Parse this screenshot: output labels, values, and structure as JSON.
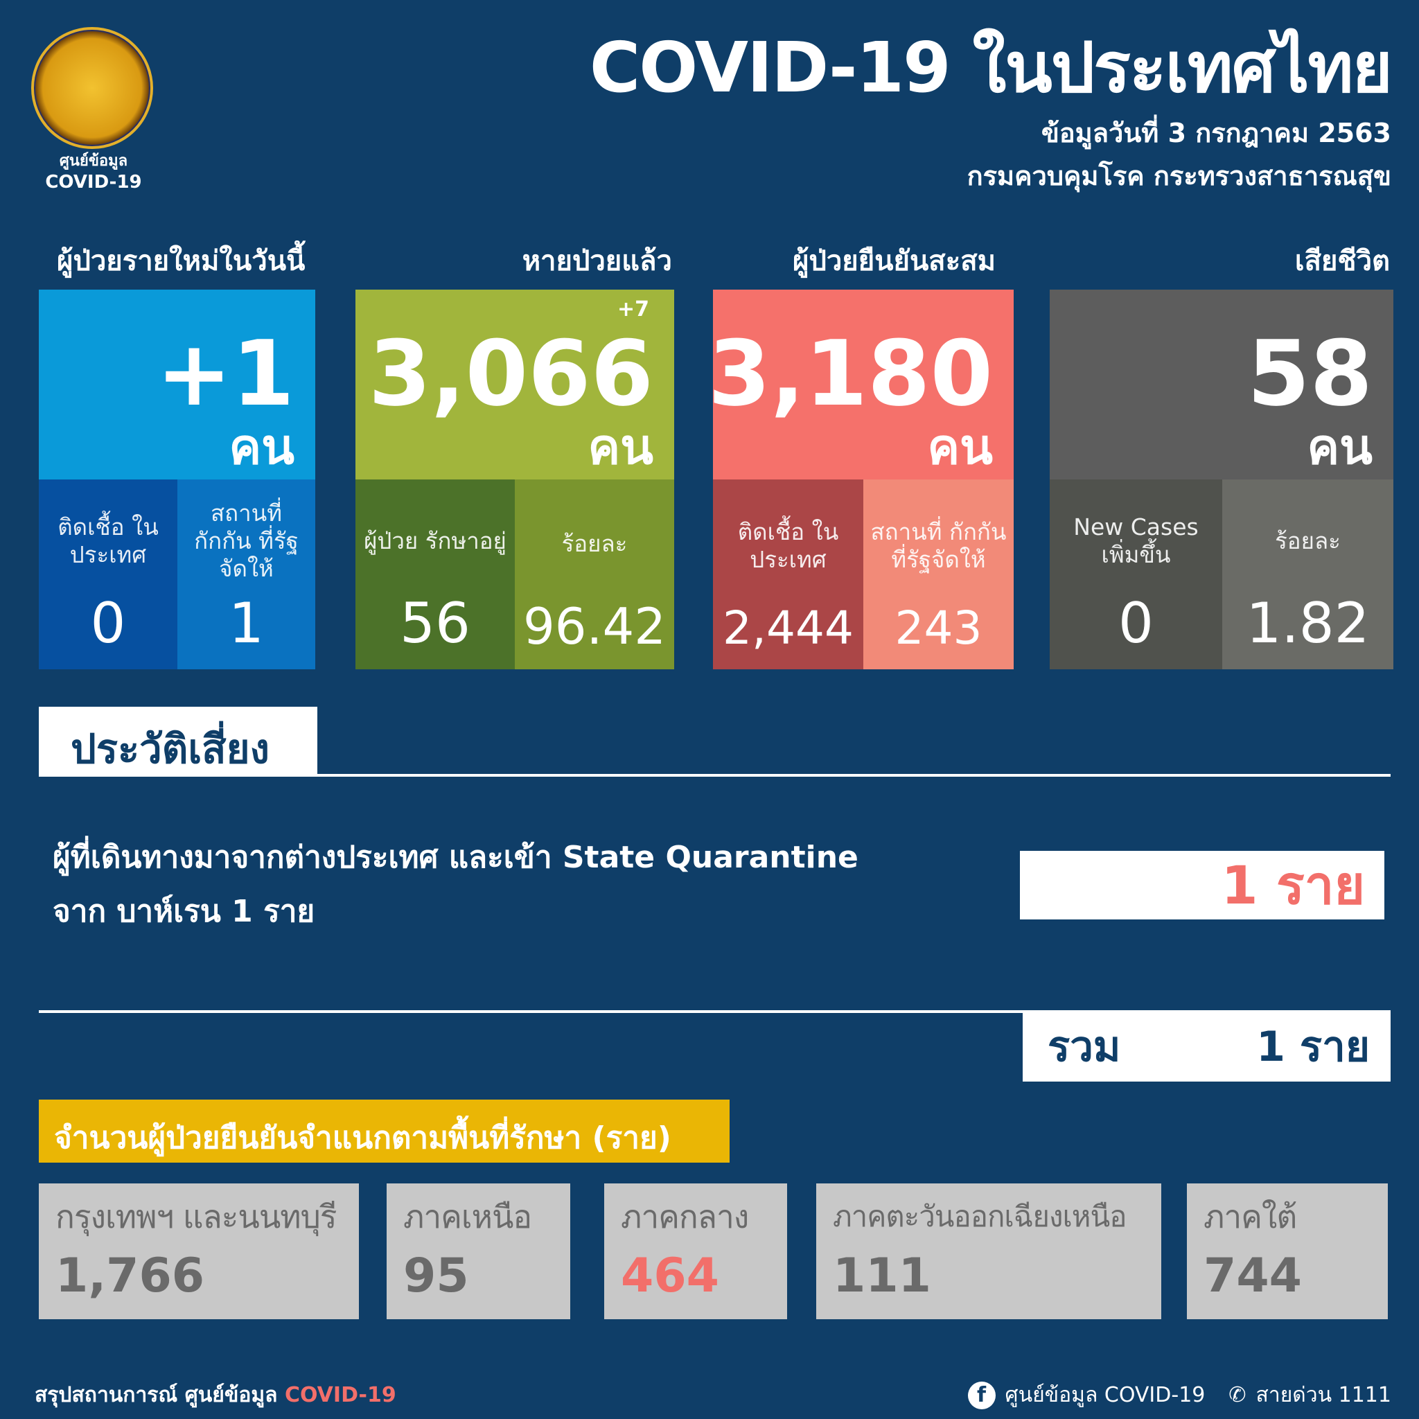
{
  "logo": {
    "line1": "ศูนย์ข้อมูล",
    "line2": "COVID-19"
  },
  "header": {
    "title": "COVID-19 ในประเทศไทย",
    "date": "ข้อมูลวันที่ 3 กรกฎาคม 2563",
    "org": "กรมควบคุมโรค กระทรวงสาธารณสุข"
  },
  "unit": "คน",
  "cards": [
    {
      "label": "ผู้ป่วยรายใหม่ในวันนี้",
      "value": "+1",
      "sub": [
        {
          "label": "ติดเชื้อ ในประเทศ",
          "value": "0"
        },
        {
          "label": "สถานที่ กักกัน ที่รัฐจัดให้",
          "value": "1"
        }
      ]
    },
    {
      "label": "หายป่วยแล้ว",
      "value": "3,066",
      "delta": "+7",
      "sub": [
        {
          "label": "ผู้ป่วย รักษาอยู่",
          "value": "56"
        },
        {
          "label": "ร้อยละ",
          "value": "96.42"
        }
      ]
    },
    {
      "label": "ผู้ป่วยยืนยันสะสม",
      "value": "3,180",
      "sub": [
        {
          "label": "ติดเชื้อ ในประเทศ",
          "value": "2,444"
        },
        {
          "label": "สถานที่ กักกัน ที่รัฐจัดให้",
          "value": "243"
        }
      ]
    },
    {
      "label": "เสียชีวิต",
      "value": "58",
      "sub": [
        {
          "label": "New Cases เพิ่มขึ้น",
          "value": "0"
        },
        {
          "label": "ร้อยละ",
          "value": "1.82"
        }
      ]
    }
  ],
  "colors": {
    "background": "#0f3e68",
    "new": "#0a9ad9",
    "recovered": "#a1b53c",
    "confirmed": "#f5716b",
    "deaths": "#5d5d5d",
    "highlight": "#f26f6a",
    "banner": "#eab605"
  },
  "risk": {
    "tab": "ประวัติเสี่ยง",
    "line1": "ผู้ที่เดินทางมาจากต่างประเทศ และเข้า State Quarantine",
    "line2": "จาก บาห์เรน 1 ราย",
    "count": "1 ราย",
    "total_label": "รวม",
    "total_value": "1 ราย"
  },
  "regions": {
    "title": "จำนวนผู้ป่วยยืนยันจำแนกตามพื้นที่รักษา (ราย)",
    "items": [
      {
        "name": "กรุงเทพฯ และนนทบุรี",
        "value": "1,766"
      },
      {
        "name": "ภาคเหนือ",
        "value": "95"
      },
      {
        "name": "ภาคกลาง",
        "value": "464"
      },
      {
        "name": "ภาคตะวันออกเฉียงเหนือ",
        "value": "111"
      },
      {
        "name": "ภาคใต้",
        "value": "744"
      }
    ]
  },
  "footer": {
    "left": "สรุปสถานการณ์ ศูนย์ข้อมูล",
    "left_accent": "COVID-19",
    "facebook": "ศูนย์ข้อมูล COVID-19",
    "hotline": "สายด่วน 1111"
  }
}
